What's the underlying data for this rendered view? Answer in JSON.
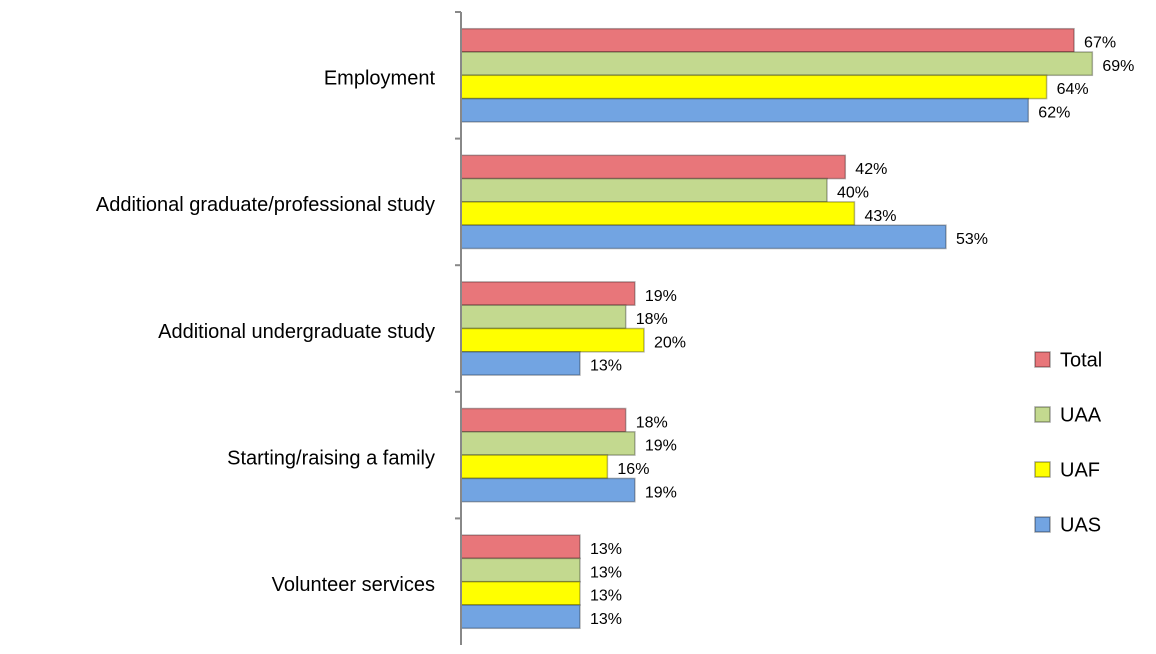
{
  "chart_data": {
    "type": "bar",
    "orientation": "horizontal",
    "categories": [
      "Employment",
      "Additional graduate/professional study",
      "Additional undergraduate study",
      "Starting/raising a family",
      "Volunteer services"
    ],
    "series": [
      {
        "name": "Total",
        "color": "#e8767a",
        "values": [
          67,
          42,
          19,
          18,
          13
        ],
        "value_labels": [
          "67%",
          "42%",
          "19%",
          "18%",
          "13%"
        ]
      },
      {
        "name": "UAA",
        "color": "#c3d98f",
        "values": [
          69,
          40,
          18,
          19,
          13
        ],
        "value_labels": [
          "69%",
          "40%",
          "18%",
          "19%",
          "13%"
        ]
      },
      {
        "name": "UAF",
        "color": "#ffff00",
        "values": [
          64,
          43,
          20,
          16,
          13
        ],
        "value_labels": [
          "64%",
          "43%",
          "20%",
          "16%",
          "13%"
        ]
      },
      {
        "name": "UAS",
        "color": "#72a4e2",
        "values": [
          62,
          53,
          13,
          19,
          13
        ],
        "value_labels": [
          "62%",
          "53%",
          "13%",
          "19%",
          "13%"
        ]
      }
    ],
    "legend": "right"
  }
}
